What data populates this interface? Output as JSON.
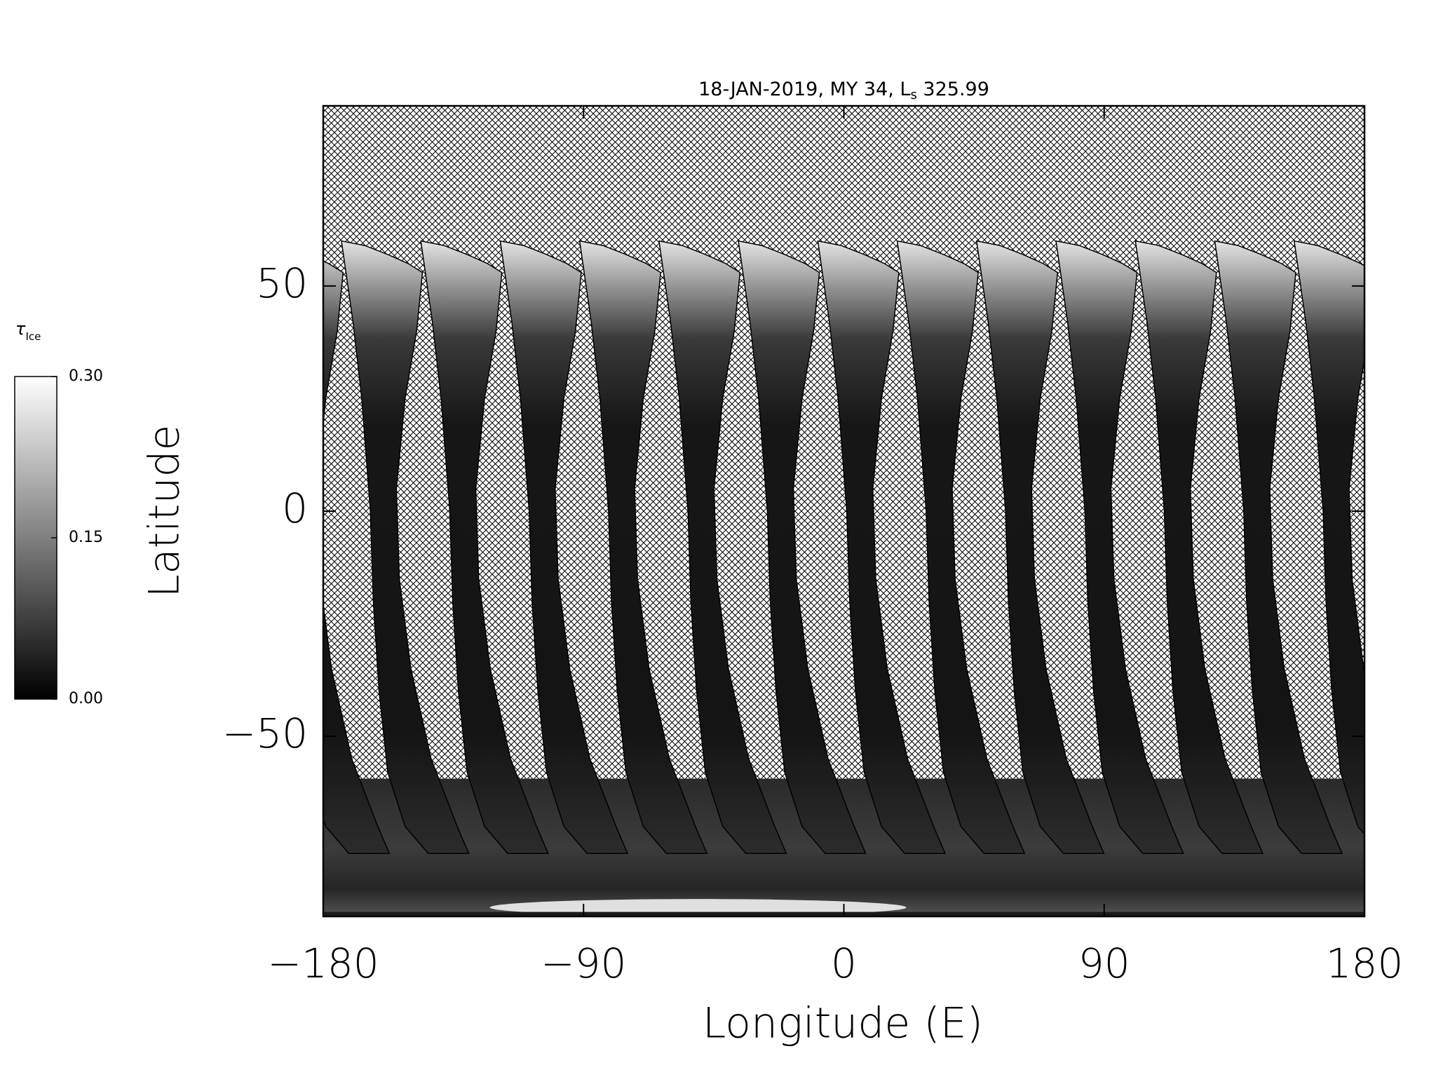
{
  "chart_data": {
    "type": "map",
    "title": {
      "main": "18-JAN-2019, MY 34,  L",
      "subscript": "s",
      "tail": " 325.99"
    },
    "xlabel": "Longitude (E)",
    "ylabel": "Latitude",
    "xlim": [
      -180,
      180
    ],
    "ylim": [
      -90,
      90
    ],
    "xticks": [
      {
        "value": -180,
        "label": "−180"
      },
      {
        "value": -90,
        "label": "−90"
      },
      0,
      90,
      180
    ],
    "yticks": [
      {
        "value": -50,
        "label": "−50"
      },
      0,
      50
    ],
    "colorbar": {
      "label": "τ",
      "label_subscript": "Ice",
      "lim": [
        0,
        0.3
      ],
      "ticks": [
        {
          "value": 0,
          "label": "0.00"
        },
        {
          "value": 0.15,
          "label": "0.15"
        },
        {
          "value": 0.3,
          "label": "0.30"
        }
      ],
      "colors": [
        "#000000",
        "#ffffff"
      ]
    }
  }
}
